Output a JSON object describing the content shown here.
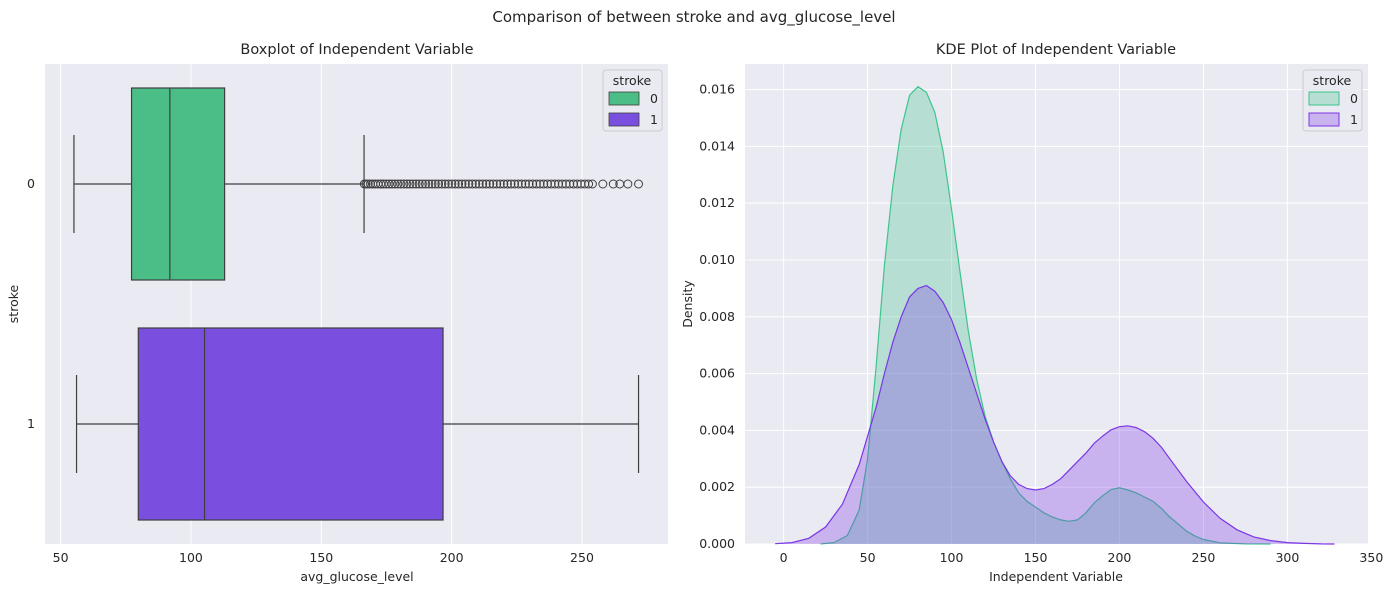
{
  "figure": {
    "suptitle": "Comparison of between stroke and avg_glucose_level"
  },
  "chart_data": [
    {
      "type": "boxplot",
      "orientation": "horizontal",
      "title": "Boxplot of Independent Variable",
      "xlabel": "avg_glucose_level",
      "ylabel": "stroke",
      "xlim": [
        44,
        283
      ],
      "xticks": [
        50,
        100,
        150,
        200,
        250
      ],
      "categories": [
        "0",
        "1"
      ],
      "grid": true,
      "legend": {
        "title": "stroke",
        "labels": [
          "0",
          "1"
        ],
        "placement": "top-right"
      },
      "colors": {
        "0": "#4bbd87",
        "1": "#7a4fe0"
      },
      "series": [
        {
          "name": "0",
          "whisker_low": 55.1,
          "q1": 77.2,
          "median": 91.9,
          "q3": 112.9,
          "whisker_high": 166.4,
          "outliers_range": [
            166.5,
            254
          ],
          "outliers_far": [
            258.0,
            262.0,
            264.5,
            267.6,
            271.7
          ]
        },
        {
          "name": "1",
          "whisker_low": 56.1,
          "q1": 79.8,
          "median": 105.2,
          "q3": 196.7,
          "whisker_high": 271.7,
          "outliers_range": [],
          "outliers_far": []
        }
      ]
    },
    {
      "type": "area",
      "subtype": "kde",
      "title": "KDE Plot of Independent Variable",
      "xlabel": "Independent Variable",
      "ylabel": "Density",
      "xlim": [
        -23,
        348
      ],
      "ylim": [
        0,
        0.0169
      ],
      "xticks": [
        0,
        50,
        100,
        150,
        200,
        250,
        300,
        350
      ],
      "yticks": [
        0.0,
        0.002,
        0.004,
        0.006,
        0.008,
        0.01,
        0.012,
        0.014,
        0.016
      ],
      "grid": true,
      "legend": {
        "title": "stroke",
        "labels": [
          "0",
          "1"
        ],
        "placement": "top-right"
      },
      "series": [
        {
          "name": "0",
          "color": "#3ec48c",
          "x": [
            22,
            30,
            38,
            45,
            50,
            55,
            60,
            65,
            70,
            75,
            80,
            85,
            90,
            95,
            100,
            105,
            110,
            115,
            120,
            125,
            130,
            135,
            140,
            145,
            150,
            155,
            160,
            165,
            170,
            175,
            180,
            185,
            190,
            195,
            200,
            205,
            210,
            215,
            220,
            225,
            230,
            235,
            240,
            245,
            250,
            260,
            275,
            290
          ],
          "y": [
            0,
            5e-05,
            0.0003,
            0.0012,
            0.003,
            0.0062,
            0.0098,
            0.0126,
            0.0146,
            0.0158,
            0.0161,
            0.0159,
            0.0152,
            0.0138,
            0.0118,
            0.0096,
            0.0075,
            0.0058,
            0.0045,
            0.0036,
            0.0029,
            0.0023,
            0.0018,
            0.0015,
            0.0013,
            0.0011,
            0.00095,
            0.00085,
            0.0008,
            0.00085,
            0.0011,
            0.00145,
            0.0017,
            0.00192,
            0.00198,
            0.0019,
            0.0018,
            0.00165,
            0.0015,
            0.00125,
            0.00095,
            0.0007,
            0.00045,
            0.00028,
            0.00016,
            4e-05,
            5e-06,
            0
          ]
        },
        {
          "name": "1",
          "color": "#7a36e6",
          "x": [
            -5,
            5,
            15,
            25,
            35,
            45,
            55,
            60,
            65,
            70,
            75,
            80,
            85,
            90,
            95,
            100,
            105,
            110,
            115,
            120,
            125,
            130,
            135,
            140,
            145,
            150,
            155,
            160,
            165,
            170,
            175,
            180,
            185,
            190,
            195,
            200,
            205,
            210,
            215,
            220,
            225,
            230,
            240,
            250,
            260,
            270,
            280,
            290,
            300,
            310,
            320,
            328
          ],
          "y": [
            1e-05,
            5e-05,
            0.0002,
            0.0006,
            0.0014,
            0.0028,
            0.0048,
            0.006,
            0.0071,
            0.008,
            0.0087,
            0.009,
            0.0091,
            0.0089,
            0.0085,
            0.0079,
            0.0071,
            0.0062,
            0.0053,
            0.0044,
            0.0036,
            0.0029,
            0.0024,
            0.0021,
            0.00195,
            0.0019,
            0.00195,
            0.0021,
            0.0023,
            0.0026,
            0.0029,
            0.0032,
            0.00355,
            0.0038,
            0.00402,
            0.00413,
            0.00416,
            0.0041,
            0.00395,
            0.00372,
            0.0034,
            0.003,
            0.0022,
            0.00148,
            0.0009,
            0.0005,
            0.00025,
            0.00012,
            5e-05,
            2e-05,
            5e-06,
            0
          ]
        }
      ]
    }
  ]
}
